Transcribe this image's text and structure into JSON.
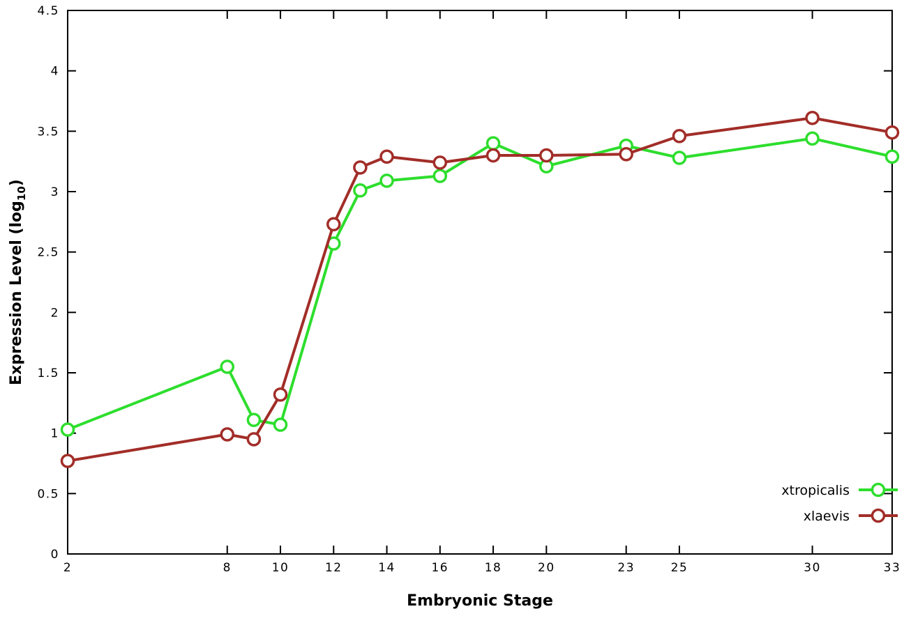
{
  "chart_data": {
    "type": "line",
    "title": "",
    "xlabel": "Embryonic Stage",
    "ylabel": {
      "prefix": "Expression Level (log",
      "sub": "10",
      "suffix": ")"
    },
    "x": [
      2,
      8,
      9,
      10,
      12,
      13,
      14,
      16,
      18,
      20,
      23,
      25,
      30,
      33
    ],
    "xticks": [
      2,
      8,
      10,
      12,
      14,
      16,
      18,
      20,
      23,
      25,
      30,
      33
    ],
    "yticks": [
      0,
      0.5,
      1,
      1.5,
      2,
      2.5,
      3,
      3.5,
      4,
      4.5
    ],
    "xlim": [
      2,
      33
    ],
    "ylim": [
      0,
      4.5
    ],
    "grid": false,
    "legend_position": "bottom-right",
    "marker": "open-circle",
    "background": "#ffffff",
    "border_color": "#000000",
    "series": [
      {
        "name": "xtropicalis",
        "color": "#2dde2d",
        "values": [
          1.03,
          1.55,
          1.11,
          1.07,
          2.57,
          3.01,
          3.09,
          3.13,
          3.4,
          3.21,
          3.38,
          3.28,
          3.44,
          3.29
        ]
      },
      {
        "name": "xlaevis",
        "color": "#a22d28",
        "values": [
          0.77,
          0.99,
          0.95,
          1.32,
          2.73,
          3.2,
          3.29,
          3.24,
          3.3,
          3.3,
          3.31,
          3.46,
          3.61,
          3.49
        ]
      }
    ]
  }
}
